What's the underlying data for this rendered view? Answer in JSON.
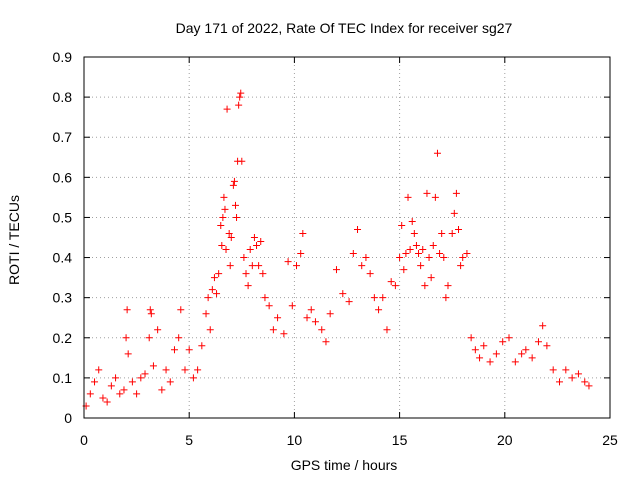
{
  "chart_data": {
    "type": "scatter",
    "title": "Day 171 of 2022, Rate Of TEC Index for receiver sg27",
    "xlabel": "GPS time / hours",
    "ylabel": "ROTI / TECUs",
    "xlim": [
      0,
      25
    ],
    "ylim": [
      0,
      0.9
    ],
    "xticks": [
      0,
      5,
      10,
      15,
      20,
      25
    ],
    "xtick_labels": [
      "0",
      "5",
      "10",
      "15",
      "20",
      "25"
    ],
    "yticks": [
      0,
      0.1,
      0.2,
      0.3,
      0.4,
      0.5,
      0.6,
      0.7,
      0.8,
      0.9
    ],
    "ytick_labels": [
      "0",
      "0.1",
      "0.2",
      "0.3",
      "0.4",
      "0.5",
      "0.6",
      "0.7",
      "0.8",
      "0.9"
    ],
    "grid": true,
    "marker": "+",
    "series_color": "#ff0000",
    "series": [
      {
        "name": "ROTI",
        "points": [
          [
            0.1,
            0.03
          ],
          [
            0.3,
            0.06
          ],
          [
            0.5,
            0.09
          ],
          [
            0.7,
            0.12
          ],
          [
            0.9,
            0.05
          ],
          [
            1.1,
            0.04
          ],
          [
            1.3,
            0.08
          ],
          [
            1.5,
            0.1
          ],
          [
            1.7,
            0.06
          ],
          [
            1.9,
            0.07
          ],
          [
            2.0,
            0.2
          ],
          [
            2.05,
            0.27
          ],
          [
            2.1,
            0.16
          ],
          [
            2.3,
            0.09
          ],
          [
            2.5,
            0.06
          ],
          [
            2.7,
            0.1
          ],
          [
            2.9,
            0.11
          ],
          [
            3.1,
            0.2
          ],
          [
            3.15,
            0.27
          ],
          [
            3.2,
            0.26
          ],
          [
            3.3,
            0.13
          ],
          [
            3.5,
            0.22
          ],
          [
            3.7,
            0.07
          ],
          [
            3.9,
            0.12
          ],
          [
            4.1,
            0.09
          ],
          [
            4.3,
            0.17
          ],
          [
            4.5,
            0.2
          ],
          [
            4.6,
            0.27
          ],
          [
            4.8,
            0.12
          ],
          [
            5.0,
            0.17
          ],
          [
            5.2,
            0.1
          ],
          [
            5.4,
            0.12
          ],
          [
            5.6,
            0.18
          ],
          [
            5.8,
            0.26
          ],
          [
            5.9,
            0.3
          ],
          [
            6.0,
            0.22
          ],
          [
            6.1,
            0.32
          ],
          [
            6.2,
            0.35
          ],
          [
            6.3,
            0.31
          ],
          [
            6.4,
            0.36
          ],
          [
            6.5,
            0.48
          ],
          [
            6.55,
            0.43
          ],
          [
            6.6,
            0.5
          ],
          [
            6.65,
            0.55
          ],
          [
            6.7,
            0.52
          ],
          [
            6.75,
            0.42
          ],
          [
            6.8,
            0.77
          ],
          [
            6.9,
            0.46
          ],
          [
            6.95,
            0.38
          ],
          [
            7.0,
            0.45
          ],
          [
            7.1,
            0.58
          ],
          [
            7.15,
            0.59
          ],
          [
            7.2,
            0.53
          ],
          [
            7.25,
            0.5
          ],
          [
            7.3,
            0.64
          ],
          [
            7.35,
            0.78
          ],
          [
            7.4,
            0.8
          ],
          [
            7.45,
            0.81
          ],
          [
            7.5,
            0.64
          ],
          [
            7.6,
            0.4
          ],
          [
            7.7,
            0.36
          ],
          [
            7.8,
            0.33
          ],
          [
            7.9,
            0.42
          ],
          [
            8.0,
            0.38
          ],
          [
            8.1,
            0.45
          ],
          [
            8.2,
            0.43
          ],
          [
            8.3,
            0.38
          ],
          [
            8.4,
            0.44
          ],
          [
            8.5,
            0.36
          ],
          [
            8.6,
            0.3
          ],
          [
            8.8,
            0.28
          ],
          [
            9.0,
            0.22
          ],
          [
            9.2,
            0.25
          ],
          [
            9.5,
            0.21
          ],
          [
            9.7,
            0.39
          ],
          [
            9.9,
            0.28
          ],
          [
            10.1,
            0.38
          ],
          [
            10.3,
            0.41
          ],
          [
            10.4,
            0.46
          ],
          [
            10.6,
            0.25
          ],
          [
            10.8,
            0.27
          ],
          [
            11.0,
            0.24
          ],
          [
            11.3,
            0.22
          ],
          [
            11.5,
            0.19
          ],
          [
            11.7,
            0.26
          ],
          [
            12.0,
            0.37
          ],
          [
            12.3,
            0.31
          ],
          [
            12.6,
            0.29
          ],
          [
            12.8,
            0.41
          ],
          [
            13.0,
            0.47
          ],
          [
            13.2,
            0.38
          ],
          [
            13.4,
            0.4
          ],
          [
            13.6,
            0.36
          ],
          [
            13.8,
            0.3
          ],
          [
            14.0,
            0.27
          ],
          [
            14.2,
            0.3
          ],
          [
            14.4,
            0.22
          ],
          [
            14.6,
            0.34
          ],
          [
            14.8,
            0.33
          ],
          [
            15.0,
            0.4
          ],
          [
            15.1,
            0.48
          ],
          [
            15.2,
            0.37
          ],
          [
            15.3,
            0.41
          ],
          [
            15.4,
            0.55
          ],
          [
            15.5,
            0.42
          ],
          [
            15.6,
            0.49
          ],
          [
            15.7,
            0.46
          ],
          [
            15.8,
            0.43
          ],
          [
            15.9,
            0.41
          ],
          [
            16.0,
            0.38
          ],
          [
            16.1,
            0.42
          ],
          [
            16.2,
            0.33
          ],
          [
            16.3,
            0.56
          ],
          [
            16.4,
            0.4
          ],
          [
            16.5,
            0.35
          ],
          [
            16.6,
            0.43
          ],
          [
            16.7,
            0.55
          ],
          [
            16.8,
            0.66
          ],
          [
            16.9,
            0.41
          ],
          [
            17.0,
            0.46
          ],
          [
            17.1,
            0.4
          ],
          [
            17.2,
            0.3
          ],
          [
            17.3,
            0.33
          ],
          [
            17.5,
            0.46
          ],
          [
            17.6,
            0.51
          ],
          [
            17.7,
            0.56
          ],
          [
            17.8,
            0.47
          ],
          [
            17.9,
            0.38
          ],
          [
            18.0,
            0.4
          ],
          [
            18.2,
            0.41
          ],
          [
            18.4,
            0.2
          ],
          [
            18.6,
            0.17
          ],
          [
            18.8,
            0.15
          ],
          [
            19.0,
            0.18
          ],
          [
            19.3,
            0.14
          ],
          [
            19.6,
            0.16
          ],
          [
            19.9,
            0.19
          ],
          [
            20.2,
            0.2
          ],
          [
            20.5,
            0.14
          ],
          [
            20.8,
            0.16
          ],
          [
            21.0,
            0.17
          ],
          [
            21.3,
            0.15
          ],
          [
            21.6,
            0.19
          ],
          [
            21.8,
            0.23
          ],
          [
            22.0,
            0.18
          ],
          [
            22.3,
            0.12
          ],
          [
            22.6,
            0.09
          ],
          [
            22.9,
            0.12
          ],
          [
            23.2,
            0.1
          ],
          [
            23.5,
            0.11
          ],
          [
            23.8,
            0.09
          ],
          [
            24.0,
            0.08
          ]
        ]
      }
    ]
  }
}
